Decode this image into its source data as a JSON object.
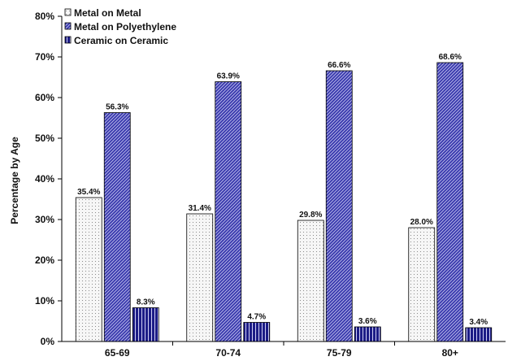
{
  "chart_data": {
    "type": "bar",
    "ylabel": "Percentage by Age",
    "ylim": [
      0,
      80
    ],
    "y_ticks": [
      "0%",
      "10%",
      "20%",
      "30%",
      "40%",
      "50%",
      "60%",
      "70%",
      "80%"
    ],
    "categories": [
      "65-69",
      "70-74",
      "75-79",
      "80+"
    ],
    "grid": false,
    "legend_position": "top-left",
    "series": [
      {
        "name": "Metal on Metal",
        "values": [
          35.4,
          31.4,
          29.8,
          28.0
        ],
        "labels": [
          "35.4%",
          "31.4%",
          "29.8%",
          "28.0%"
        ],
        "color": "#f4f4f4",
        "pattern": "dots"
      },
      {
        "name": "Metal on Polyethylene",
        "values": [
          56.3,
          63.9,
          66.6,
          68.6
        ],
        "labels": [
          "56.3%",
          "63.9%",
          "66.6%",
          "68.6%"
        ],
        "color": "#3535a8",
        "pattern": "diagonal"
      },
      {
        "name": "Ceramic on Ceramic",
        "values": [
          8.3,
          4.7,
          3.6,
          3.4
        ],
        "labels": [
          "8.3%",
          "4.7%",
          "3.6%",
          "3.4%"
        ],
        "color": "#20208a",
        "pattern": "vertical"
      }
    ]
  }
}
